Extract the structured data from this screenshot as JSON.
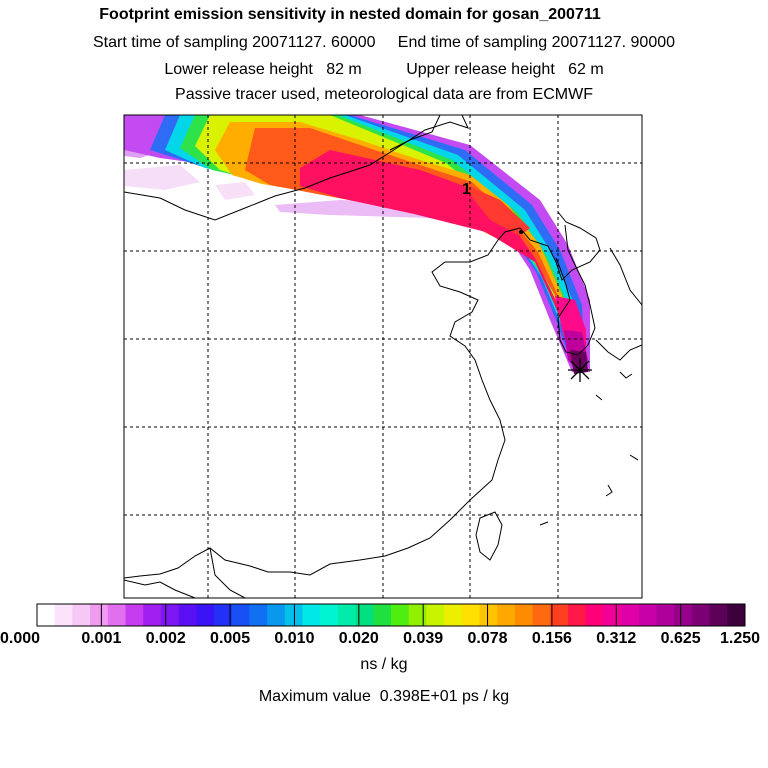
{
  "header": {
    "title": "Footprint emission sensitivity in nested domain for gosan_200711",
    "start_label": "Start time of sampling 20071127. 60000",
    "end_label": "End time of sampling 20071127. 90000",
    "lower_label": "Lower release height   82 m",
    "upper_label": "Upper release height   62 m",
    "tracer_note": "Passive tracer used, meteorological data are from ECMWF"
  },
  "map": {
    "marker_label": "1"
  },
  "colorbar": {
    "levels": [
      "0.000",
      "0.001",
      "0.002",
      "0.005",
      "0.010",
      "0.020",
      "0.039",
      "0.078",
      "0.156",
      "0.312",
      "0.625",
      "1.250"
    ],
    "colors": [
      "#ffffff",
      "#fbe3fb",
      "#f6c8f6",
      "#ef9bef",
      "#e070ee",
      "#c63df0",
      "#a020f0",
      "#7d16f2",
      "#5a0ff4",
      "#3a14f6",
      "#2430f6",
      "#1850f5",
      "#1070f2",
      "#0898ee",
      "#05c0ea",
      "#00e8e8",
      "#00f4d0",
      "#00eca8",
      "#00e080",
      "#20e040",
      "#50ee10",
      "#90f000",
      "#c8f400",
      "#ecf000",
      "#ffe000",
      "#ffc400",
      "#ffa800",
      "#ff8c00",
      "#ff6a10",
      "#ff4020",
      "#ff1848",
      "#ff0078",
      "#f00098",
      "#e000a8",
      "#c800a8",
      "#b0009c",
      "#96008a",
      "#7a0074",
      "#5c0058",
      "#3e003c"
    ],
    "unit": "ns / kg",
    "max_value": "Maximum value  0.398E+01 ps / kg"
  }
}
